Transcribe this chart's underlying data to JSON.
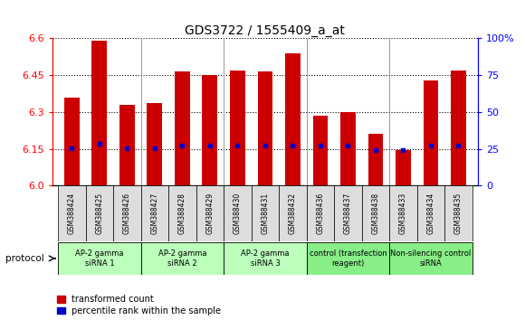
{
  "title": "GDS3722 / 1555409_a_at",
  "samples": [
    "GSM388424",
    "GSM388425",
    "GSM388426",
    "GSM388427",
    "GSM388428",
    "GSM388429",
    "GSM388430",
    "GSM388431",
    "GSM388432",
    "GSM388436",
    "GSM388437",
    "GSM388438",
    "GSM388433",
    "GSM388434",
    "GSM388435"
  ],
  "red_values": [
    6.36,
    6.59,
    6.33,
    6.335,
    6.465,
    6.45,
    6.47,
    6.465,
    6.54,
    6.285,
    6.3,
    6.21,
    6.145,
    6.43,
    6.47
  ],
  "blue_values": [
    6.152,
    6.172,
    6.152,
    6.152,
    6.163,
    6.163,
    6.163,
    6.163,
    6.163,
    6.163,
    6.163,
    6.145,
    6.145,
    6.163,
    6.163
  ],
  "y_min": 6.0,
  "y_max": 6.6,
  "y_ticks": [
    6.0,
    6.15,
    6.3,
    6.45,
    6.6
  ],
  "y2_ticks": [
    0,
    25,
    50,
    75,
    100
  ],
  "bar_color": "#cc0000",
  "dot_color": "#0000cc",
  "background_color": "#ffffff",
  "groups": [
    {
      "label": "AP-2 gamma\nsiRNA 1",
      "start": 0,
      "end": 3,
      "color": "#bbffbb"
    },
    {
      "label": "AP-2 gamma\nsiRNA 2",
      "start": 3,
      "end": 6,
      "color": "#bbffbb"
    },
    {
      "label": "AP-2 gamma\nsiRNA 3",
      "start": 6,
      "end": 9,
      "color": "#bbffbb"
    },
    {
      "label": "control (transfection\nreagent)",
      "start": 9,
      "end": 12,
      "color": "#88ee88"
    },
    {
      "label": "Non-silencing control\nsiRNA",
      "start": 12,
      "end": 15,
      "color": "#88ee88"
    }
  ],
  "protocol_label": "protocol",
  "legend_red": "transformed count",
  "legend_blue": "percentile rank within the sample",
  "bar_width": 0.55
}
